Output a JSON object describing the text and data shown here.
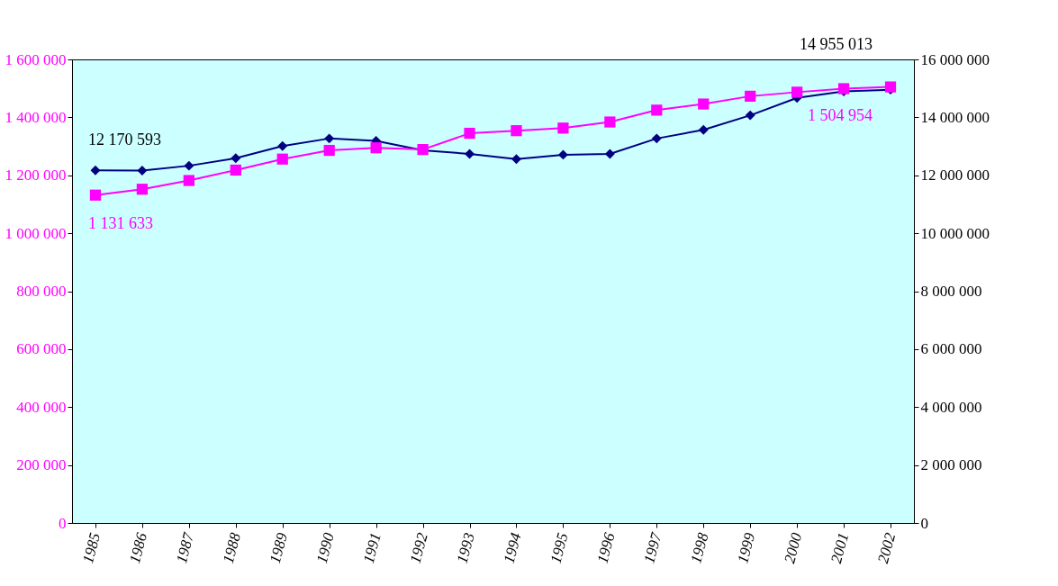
{
  "chart_data": {
    "type": "line",
    "categories": [
      "1985",
      "1986",
      "1987",
      "1988",
      "1989",
      "1990",
      "1991",
      "1992",
      "1993",
      "1994",
      "1995",
      "1996",
      "1997",
      "1998",
      "1999",
      "2000",
      "2001",
      "2002"
    ],
    "series": [
      {
        "color": "#000080",
        "axis": "y2",
        "marker": "diamond",
        "values": [
          12170593,
          12160000,
          12330000,
          12590000,
          13010000,
          13270000,
          13190000,
          12860000,
          12740000,
          12560000,
          12710000,
          12740000,
          13270000,
          13570000,
          14070000,
          14670000,
          14900000,
          14955013
        ],
        "value_labels": [
          "12 170 593",
          null,
          null,
          null,
          null,
          null,
          null,
          null,
          null,
          null,
          null,
          null,
          null,
          null,
          null,
          null,
          null,
          "14 955 013"
        ]
      },
      {
        "color": "#ff00ff",
        "marker": "square",
        "values": [
          1131633,
          1152000,
          1182000,
          1218000,
          1256000,
          1286000,
          1295000,
          1289000,
          1345000,
          1354000,
          1363000,
          1384000,
          1425000,
          1446000,
          1473000,
          1487000,
          1499000,
          1504954
        ],
        "value_labels": [
          "1 131 633",
          null,
          null,
          null,
          null,
          null,
          null,
          null,
          null,
          null,
          null,
          null,
          null,
          null,
          null,
          null,
          null,
          "1 504 954"
        ]
      }
    ],
    "ylim": [
      0,
      1600000
    ],
    "yticks": [
      0,
      200000,
      400000,
      600000,
      800000,
      1000000,
      1200000,
      1400000,
      1600000
    ],
    "y2lim": [
      0,
      16000000
    ],
    "y2ticks": [
      0,
      2000000,
      4000000,
      6000000,
      8000000,
      10000000,
      12000000,
      14000000,
      16000000
    ],
    "grid": false,
    "line_style": "solid"
  }
}
